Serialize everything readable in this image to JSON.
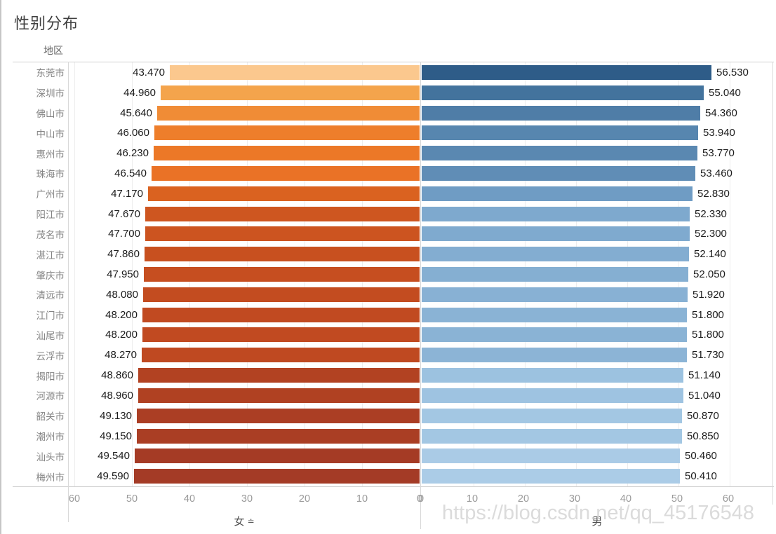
{
  "title": "性别分布",
  "region_header": "地区",
  "watermark": "https://blog.csdn.net/qq_45176548",
  "axes": {
    "left_title": "女",
    "right_title": "男",
    "sort_icon": "≐"
  },
  "colors": {
    "gridline": "#ededed",
    "axis_line": "#cfcfcf",
    "tick_text": "#9a9a9a",
    "region_text": "#848484",
    "value_text": "#1c1c1c"
  },
  "chart_data": {
    "type": "bar",
    "variant": "diverging-horizontal",
    "title": "性别分布",
    "category_axis_label": "地区",
    "categories": [
      "东莞市",
      "深圳市",
      "佛山市",
      "中山市",
      "惠州市",
      "珠海市",
      "广州市",
      "阳江市",
      "茂名市",
      "湛江市",
      "肇庆市",
      "清远市",
      "江门市",
      "汕尾市",
      "云浮市",
      "揭阳市",
      "河源市",
      "韶关市",
      "潮州市",
      "汕头市",
      "梅州市"
    ],
    "series": [
      {
        "name": "女",
        "axis_side": "left",
        "values": [
          43.47,
          44.96,
          45.64,
          46.06,
          46.23,
          46.54,
          47.17,
          47.67,
          47.7,
          47.86,
          47.95,
          48.08,
          48.2,
          48.2,
          48.27,
          48.86,
          48.96,
          49.13,
          49.15,
          49.54,
          49.59
        ],
        "labels": [
          "43.470",
          "44.960",
          "45.640",
          "46.060",
          "46.230",
          "46.540",
          "47.170",
          "47.670",
          "47.700",
          "47.860",
          "47.950",
          "48.080",
          "48.200",
          "48.200",
          "48.270",
          "48.860",
          "48.960",
          "49.130",
          "49.150",
          "49.540",
          "49.590"
        ],
        "colors": [
          "#FBC88E",
          "#F4A44C",
          "#F08C36",
          "#EE7E2B",
          "#EC7827",
          "#EA7226",
          "#DA6220",
          "#CE5620",
          "#CC5420",
          "#C8501F",
          "#C64E20",
          "#C34C20",
          "#C14A21",
          "#C14A21",
          "#BF4921",
          "#B24222",
          "#B04122",
          "#AB3E24",
          "#AA3E24",
          "#A53B25",
          "#A43B26"
        ]
      },
      {
        "name": "男",
        "axis_side": "right",
        "values": [
          56.53,
          55.04,
          54.36,
          53.94,
          53.77,
          53.46,
          52.83,
          52.33,
          52.3,
          52.14,
          52.05,
          51.92,
          51.8,
          51.8,
          51.73,
          51.14,
          51.04,
          50.87,
          50.85,
          50.46,
          50.41
        ],
        "labels": [
          "56.530",
          "55.040",
          "54.360",
          "53.940",
          "53.770",
          "53.460",
          "52.830",
          "52.330",
          "52.300",
          "52.140",
          "52.050",
          "51.920",
          "51.800",
          "51.800",
          "51.730",
          "51.140",
          "51.040",
          "50.870",
          "50.850",
          "50.460",
          "50.410"
        ],
        "colors": [
          "#2E5C88",
          "#43739D",
          "#4F7DA7",
          "#5786AF",
          "#5A88B1",
          "#608DB6",
          "#6F9CC4",
          "#7EA9CE",
          "#7FAACF",
          "#83ADD1",
          "#85AFD2",
          "#88B1D4",
          "#8AB3D5",
          "#8AB3D5",
          "#8CB4D6",
          "#9CC2E0",
          "#9EC3E1",
          "#A3C7E3",
          "#A3C7E3",
          "#AACBE6",
          "#ABCCE7"
        ]
      }
    ],
    "xlim": [
      0,
      60
    ],
    "left_axis_ticks": [
      60,
      50,
      40,
      30,
      20,
      10,
      0
    ],
    "right_axis_ticks": [
      0,
      10,
      20,
      30,
      40,
      50,
      60
    ],
    "grid": true,
    "legend": "none"
  }
}
